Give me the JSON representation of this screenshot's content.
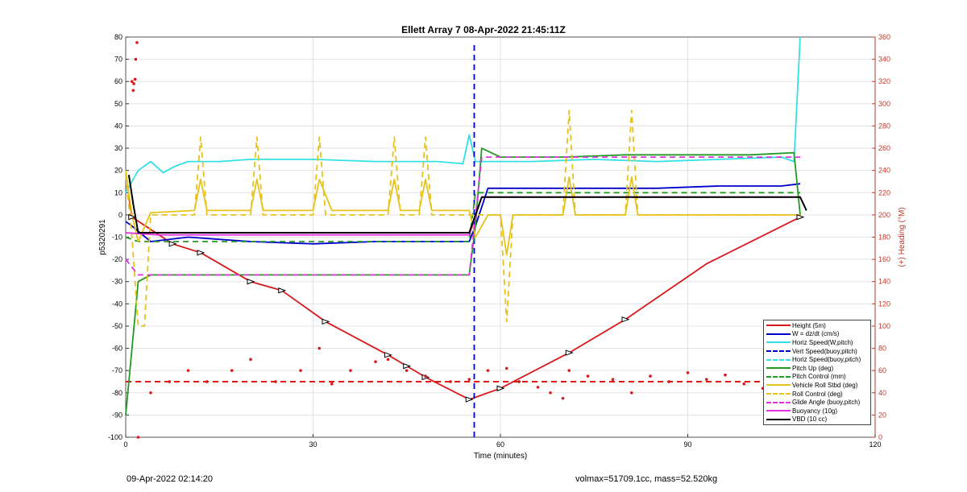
{
  "title": "Ellett Array 7 08-Apr-2022 21:45:11Z",
  "footer_left": "09-Apr-2022 02:14:20",
  "footer_right": "volmax=51709.1cc, mass=52.520kg",
  "chart_data": {
    "type": "line",
    "xlabel": "Time (minutes)",
    "ylabel_left": "p5320291",
    "ylabel_right": "(+) Heading (°M)",
    "xlim": [
      0,
      120
    ],
    "ylim_left": [
      -100,
      80
    ],
    "ylim_right": [
      0,
      360
    ],
    "xticks": [
      0,
      30,
      60,
      90,
      120
    ],
    "yticks_left": [
      80,
      70,
      60,
      50,
      40,
      30,
      20,
      10,
      0,
      -10,
      -20,
      -30,
      -40,
      -50,
      -60,
      -70,
      -80,
      -90,
      -100
    ],
    "yticks_right": [
      360,
      340,
      320,
      300,
      280,
      260,
      240,
      220,
      200,
      180,
      160,
      140,
      120,
      100,
      80,
      60,
      40,
      20,
      0
    ],
    "grid": true,
    "legend_position": "bottom-right",
    "colors": {
      "red": "#d7191c",
      "blue": "#0000cc",
      "cyan": "#33e0e6",
      "green": "#229922",
      "yellow": "#e6c21a",
      "magenta": "#e030e0",
      "black": "#000000",
      "right_axis": "#c0392b"
    },
    "legend": [
      {
        "label": "Height (5m)",
        "color": "#d7191c",
        "dash": "solid"
      },
      {
        "label": "W = dz/dt (cm/s)",
        "color": "#0000cc",
        "dash": "solid"
      },
      {
        "label": "Horiz Speed(W,pitch)",
        "color": "#33e0e6",
        "dash": "solid"
      },
      {
        "label": "Vert Speed(buoy,pitch)",
        "color": "#0000cc",
        "dash": "dashed"
      },
      {
        "label": "Horiz Speed(buoy,pitch)",
        "color": "#33e0e6",
        "dash": "dashed"
      },
      {
        "label": "Pitch Up (deg)",
        "color": "#229922",
        "dash": "solid"
      },
      {
        "label": "Pitch Control (mm)",
        "color": "#229922",
        "dash": "dashed"
      },
      {
        "label": "Vehicle Roll Stbd (deg)",
        "color": "#e6c21a",
        "dash": "solid"
      },
      {
        "label": "Roll Control (deg)",
        "color": "#e6c21a",
        "dash": "dashed"
      },
      {
        "label": "Glide Angle (buoy,pitch)",
        "color": "#e030e0",
        "dash": "dashed"
      },
      {
        "label": "Buoyancy (10g)",
        "color": "#e030e0",
        "dash": "solid"
      },
      {
        "label": "VBD (10 cc)",
        "color": "#000000",
        "dash": "solid"
      }
    ],
    "series": [
      {
        "name": "Height (5m)",
        "x": [
          0.5,
          1,
          7.5,
          12,
          20,
          25,
          32,
          42,
          45,
          48,
          55,
          60,
          71,
          80,
          93,
          108
        ],
        "y": [
          8,
          -1,
          -13,
          -17,
          -30,
          -34,
          -48,
          -63,
          -68,
          -73,
          -83,
          -78,
          -62,
          -47,
          -22,
          -1
        ]
      },
      {
        "name": "W = dz/dt (cm/s)",
        "x": [
          0,
          1,
          4,
          10,
          20,
          30,
          40,
          50,
          55,
          56,
          58,
          65,
          75,
          85,
          95,
          105,
          108
        ],
        "y": [
          -3,
          -5,
          -12,
          -10,
          -12,
          -13,
          -12,
          -12,
          -12,
          -5,
          12,
          12,
          12,
          12,
          13,
          13,
          14
        ]
      },
      {
        "name": "Horiz Speed(W,pitch)",
        "x": [
          0,
          2,
          4,
          6,
          8,
          10,
          15,
          20,
          30,
          40,
          50,
          54,
          55,
          56,
          58,
          65,
          75,
          85,
          95,
          105,
          107,
          108
        ],
        "y": [
          10,
          20,
          24,
          19,
          22,
          24,
          24,
          25,
          25,
          24,
          24,
          23,
          36,
          24,
          24,
          24,
          25,
          24,
          25,
          26,
          24,
          80
        ]
      },
      {
        "name": "Vert Speed(buoy,pitch)",
        "x": [
          55.8,
          55.8
        ],
        "y": [
          -100,
          78
        ]
      },
      {
        "name": "Pitch Up (deg)",
        "x": [
          0,
          1,
          2,
          4,
          10,
          20,
          30,
          40,
          50,
          55,
          56,
          57,
          60,
          70,
          80,
          90,
          100,
          107,
          108
        ],
        "y": [
          -90,
          -60,
          -30,
          -27,
          -27,
          -27,
          -27,
          -27,
          -27,
          -27,
          -5,
          30,
          26,
          26,
          27,
          27,
          27,
          28,
          0
        ]
      },
      {
        "name": "Pitch Control (mm)",
        "x": [
          0,
          2,
          5,
          20,
          40,
          55,
          56,
          60,
          80,
          100,
          108
        ],
        "y": [
          -10,
          -12,
          -12,
          -12,
          -12,
          -12,
          10,
          10,
          10,
          10,
          10
        ]
      },
      {
        "name": "Vehicle Roll Stbd (deg)",
        "x": [
          0,
          1,
          2,
          4,
          11,
          12,
          13,
          20,
          21,
          22,
          30,
          31,
          33,
          42,
          43,
          44,
          47,
          48,
          49,
          55,
          56,
          58,
          60,
          61,
          62,
          70,
          71,
          72,
          80,
          81,
          82,
          108
        ],
        "y": [
          20,
          0,
          -12,
          1,
          2,
          16,
          2,
          2,
          16,
          2,
          2,
          16,
          2,
          2,
          16,
          2,
          2,
          16,
          2,
          2,
          -10,
          0,
          0,
          -18,
          0,
          0,
          17,
          0,
          0,
          17,
          0,
          0
        ]
      },
      {
        "name": "Roll Control (deg)",
        "x": [
          0,
          1,
          2,
          3,
          4,
          11,
          12,
          13,
          20,
          21,
          22,
          30,
          31,
          32,
          42,
          43,
          44,
          47,
          48,
          49,
          55,
          60,
          61,
          62,
          70,
          71,
          72,
          80,
          81,
          82,
          108
        ],
        "y": [
          18,
          -10,
          -50,
          -50,
          0,
          0,
          35,
          0,
          0,
          35,
          0,
          0,
          35,
          0,
          0,
          35,
          0,
          0,
          35,
          0,
          0,
          0,
          -48,
          0,
          0,
          47,
          0,
          0,
          47,
          0,
          0
        ]
      },
      {
        "name": "Glide Angle (buoy,pitch)",
        "x": [
          0,
          2,
          5,
          20,
          40,
          55,
          57,
          60,
          80,
          100,
          108
        ],
        "y": [
          -20,
          -27,
          -27,
          -27,
          -27,
          -27,
          26,
          26,
          26,
          26,
          26
        ]
      },
      {
        "name": "Buoyancy (10g)",
        "x": [
          0,
          5,
          20,
          40,
          55,
          57,
          60,
          80,
          108
        ],
        "y": [
          -8,
          -9,
          -9,
          -9,
          -9,
          8,
          8,
          8,
          8
        ]
      },
      {
        "name": "VBD (10 cc)",
        "x": [
          0.5,
          1.2,
          2,
          5,
          20,
          40,
          55,
          57,
          60,
          80,
          108,
          109
        ],
        "y": [
          18,
          5,
          -8,
          -8,
          -8,
          -8,
          -8,
          8,
          8,
          8,
          8,
          2
        ]
      }
    ],
    "heading_points": [
      [
        1,
        320
      ],
      [
        1.3,
        318
      ],
      [
        1.6,
        340
      ],
      [
        1.8,
        355
      ],
      [
        1.5,
        322
      ],
      [
        1.2,
        312
      ],
      [
        2,
        0
      ],
      [
        4,
        40
      ],
      [
        7,
        50
      ],
      [
        10,
        60
      ],
      [
        13,
        50
      ],
      [
        17,
        60
      ],
      [
        20,
        70
      ],
      [
        24,
        50
      ],
      [
        28,
        60
      ],
      [
        31,
        80
      ],
      [
        33,
        48
      ],
      [
        36,
        60
      ],
      [
        40,
        68
      ],
      [
        42,
        70
      ],
      [
        45,
        60
      ],
      [
        48,
        55
      ],
      [
        52,
        50
      ],
      [
        55,
        52
      ],
      [
        58,
        60
      ],
      [
        61,
        62
      ],
      [
        63,
        50
      ],
      [
        66,
        45
      ],
      [
        68,
        40
      ],
      [
        70,
        35
      ],
      [
        71,
        60
      ],
      [
        74,
        55
      ],
      [
        78,
        52
      ],
      [
        81,
        40
      ],
      [
        84,
        55
      ],
      [
        87,
        50
      ],
      [
        90,
        58
      ],
      [
        93,
        52
      ],
      [
        96,
        56
      ],
      [
        99,
        48
      ],
      [
        102,
        44
      ],
      [
        105,
        46
      ],
      [
        107,
        40
      ]
    ],
    "heading_mean": 50,
    "height_markers": [
      [
        1,
        -1
      ],
      [
        7.5,
        -13
      ],
      [
        12,
        -17
      ],
      [
        20,
        -30
      ],
      [
        25,
        -34
      ],
      [
        32,
        -48
      ],
      [
        42,
        -63
      ],
      [
        45,
        -68
      ],
      [
        48,
        -73
      ],
      [
        55,
        -83
      ],
      [
        60,
        -78
      ],
      [
        71,
        -62
      ],
      [
        80,
        -47
      ],
      [
        108,
        -1
      ]
    ]
  }
}
